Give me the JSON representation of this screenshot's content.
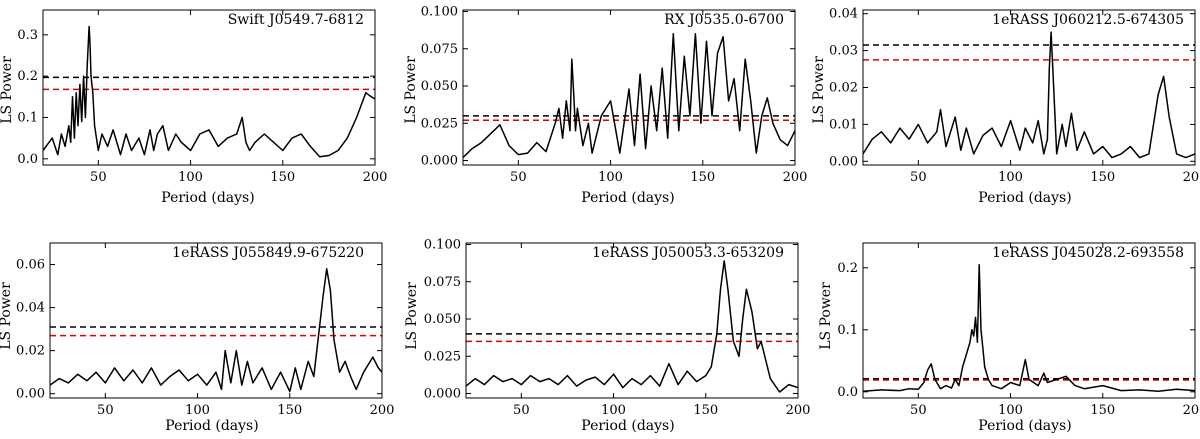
{
  "figure": {
    "xlabel": "Period (days)",
    "ylabel": "LS Power",
    "colors": {
      "power": "#000000",
      "threshold_black": "#000000",
      "threshold_red": "#e00000"
    }
  },
  "chart_data": [
    {
      "type": "line",
      "title": "Swift J0549.7-6812",
      "xlabel": "Period (days)",
      "ylabel": "LS Power",
      "xlim": [
        20,
        200
      ],
      "ylim": [
        -0.015,
        0.36
      ],
      "xticks": [
        50,
        100,
        150,
        200
      ],
      "xtick_labels": [
        "50",
        "100",
        "150",
        "200"
      ],
      "yticks": [
        0.0,
        0.1,
        0.2,
        0.3
      ],
      "ytick_labels": [
        "0.0",
        "0.1",
        "0.2",
        "0.3"
      ],
      "thresholds": [
        {
          "color": "black",
          "value": 0.197
        },
        {
          "color": "red",
          "value": 0.168
        }
      ],
      "x": [
        20,
        25,
        28,
        30,
        32,
        34,
        35,
        36,
        37,
        38,
        39,
        40,
        41,
        42,
        43,
        44,
        45,
        45.5,
        46,
        47,
        48,
        50,
        52,
        55,
        58,
        62,
        65,
        68,
        72,
        75,
        78,
        80,
        82,
        85,
        88,
        92,
        95,
        100,
        105,
        110,
        115,
        120,
        125,
        128,
        130,
        132,
        135,
        140,
        145,
        150,
        155,
        160,
        165,
        170,
        175,
        180,
        185,
        190,
        195,
        198,
        200
      ],
      "y": [
        0.02,
        0.05,
        0.01,
        0.06,
        0.03,
        0.08,
        0.04,
        0.15,
        0.05,
        0.16,
        0.08,
        0.18,
        0.09,
        0.2,
        0.1,
        0.23,
        0.32,
        0.28,
        0.2,
        0.16,
        0.08,
        0.02,
        0.06,
        0.03,
        0.07,
        0.01,
        0.06,
        0.02,
        0.05,
        0.01,
        0.07,
        0.02,
        0.06,
        0.08,
        0.02,
        0.06,
        0.04,
        0.02,
        0.06,
        0.07,
        0.03,
        0.05,
        0.06,
        0.1,
        0.04,
        0.02,
        0.04,
        0.06,
        0.04,
        0.02,
        0.05,
        0.06,
        0.03,
        0.005,
        0.008,
        0.02,
        0.05,
        0.1,
        0.16,
        0.15,
        0.145
      ]
    },
    {
      "type": "line",
      "title": "RX J0535.0-6700",
      "xlabel": "Period (days)",
      "ylabel": "LS Power",
      "xlim": [
        20,
        200
      ],
      "ylim": [
        -0.003,
        0.101
      ],
      "xticks": [
        50,
        100,
        150,
        200
      ],
      "xtick_labels": [
        "50",
        "100",
        "150",
        "200"
      ],
      "yticks": [
        0.0,
        0.025,
        0.05,
        0.075,
        0.1
      ],
      "ytick_labels": [
        "0.000",
        "0.025",
        "0.050",
        "0.075",
        "0.100"
      ],
      "thresholds": [
        {
          "color": "black",
          "value": 0.03
        },
        {
          "color": "red",
          "value": 0.027
        }
      ],
      "x": [
        20,
        25,
        30,
        35,
        40,
        45,
        50,
        55,
        60,
        65,
        70,
        72,
        74,
        76,
        78,
        79,
        80,
        81,
        82,
        85,
        88,
        90,
        95,
        100,
        105,
        110,
        113,
        116,
        119,
        122,
        125,
        128,
        131,
        134,
        137,
        140,
        143,
        146,
        149,
        152,
        155,
        158,
        161,
        164,
        167,
        170,
        173,
        176,
        179,
        182,
        185,
        188,
        192,
        196,
        200
      ],
      "y": [
        0.002,
        0.008,
        0.012,
        0.018,
        0.024,
        0.01,
        0.004,
        0.005,
        0.012,
        0.006,
        0.025,
        0.035,
        0.015,
        0.04,
        0.02,
        0.068,
        0.045,
        0.02,
        0.035,
        0.01,
        0.025,
        0.005,
        0.03,
        0.04,
        0.005,
        0.048,
        0.01,
        0.058,
        0.008,
        0.05,
        0.02,
        0.062,
        0.015,
        0.085,
        0.02,
        0.07,
        0.03,
        0.085,
        0.025,
        0.08,
        0.03,
        0.072,
        0.083,
        0.04,
        0.055,
        0.02,
        0.068,
        0.04,
        0.005,
        0.03,
        0.042,
        0.025,
        0.014,
        0.01,
        0.02
      ]
    },
    {
      "type": "line",
      "title": "1eRASS J060212.5-674305",
      "xlabel": "Period (days)",
      "ylabel": "LS Power",
      "xlim": [
        20,
        200
      ],
      "ylim": [
        -0.001,
        0.041
      ],
      "xticks": [
        50,
        100,
        150,
        200
      ],
      "xtick_labels": [
        "50",
        "100",
        "150",
        "200"
      ],
      "yticks": [
        0.0,
        0.01,
        0.02,
        0.03,
        0.04
      ],
      "ytick_labels": [
        "0.00",
        "0.01",
        "0.02",
        "0.03",
        "0.04"
      ],
      "thresholds": [
        {
          "color": "black",
          "value": 0.0315
        },
        {
          "color": "red",
          "value": 0.0275
        }
      ],
      "x": [
        20,
        25,
        30,
        35,
        40,
        45,
        50,
        55,
        60,
        62,
        65,
        70,
        73,
        76,
        80,
        85,
        90,
        95,
        100,
        105,
        108,
        112,
        115,
        118,
        120,
        121,
        122,
        123,
        125,
        128,
        130,
        133,
        136,
        140,
        145,
        150,
        155,
        160,
        165,
        170,
        175,
        180,
        183,
        186,
        190,
        195,
        200
      ],
      "y": [
        0.002,
        0.006,
        0.008,
        0.005,
        0.009,
        0.006,
        0.01,
        0.005,
        0.008,
        0.014,
        0.004,
        0.012,
        0.003,
        0.009,
        0.002,
        0.007,
        0.009,
        0.004,
        0.011,
        0.003,
        0.009,
        0.005,
        0.011,
        0.002,
        0.006,
        0.025,
        0.035,
        0.024,
        0.002,
        0.01,
        0.004,
        0.013,
        0.003,
        0.008,
        0.002,
        0.004,
        0.001,
        0.002,
        0.004,
        0.001,
        0.002,
        0.018,
        0.023,
        0.012,
        0.002,
        0.001,
        0.002
      ]
    },
    {
      "type": "line",
      "title": "1eRASS J055849.9-675220",
      "xlabel": "Period (days)",
      "ylabel": "LS Power",
      "xlim": [
        20,
        200
      ],
      "ylim": [
        -0.002,
        0.07
      ],
      "xticks": [
        50,
        100,
        150,
        200
      ],
      "xtick_labels": [
        "50",
        "100",
        "150",
        "200"
      ],
      "yticks": [
        0.0,
        0.02,
        0.04,
        0.06
      ],
      "ytick_labels": [
        "0.00",
        "0.02",
        "0.04",
        "0.06"
      ],
      "thresholds": [
        {
          "color": "black",
          "value": 0.031
        },
        {
          "color": "red",
          "value": 0.027
        }
      ],
      "x": [
        20,
        25,
        30,
        35,
        40,
        45,
        50,
        55,
        60,
        65,
        70,
        75,
        80,
        85,
        90,
        95,
        100,
        105,
        110,
        113,
        115,
        118,
        121,
        124,
        127,
        130,
        135,
        140,
        145,
        150,
        153,
        156,
        160,
        163,
        166,
        168,
        170,
        172,
        174,
        177,
        180,
        183,
        186,
        190,
        195,
        198,
        200
      ],
      "y": [
        0.004,
        0.007,
        0.005,
        0.009,
        0.006,
        0.01,
        0.005,
        0.012,
        0.006,
        0.011,
        0.005,
        0.012,
        0.004,
        0.008,
        0.011,
        0.006,
        0.009,
        0.004,
        0.01,
        0.002,
        0.02,
        0.005,
        0.02,
        0.004,
        0.015,
        0.005,
        0.012,
        0.002,
        0.01,
        0.001,
        0.012,
        0.002,
        0.015,
        0.008,
        0.03,
        0.045,
        0.058,
        0.048,
        0.025,
        0.01,
        0.015,
        0.008,
        0.002,
        0.01,
        0.017,
        0.012,
        0.01
      ]
    },
    {
      "type": "line",
      "title": "1eRASS J050053.3-653209",
      "xlabel": "Period (days)",
      "ylabel": "LS Power",
      "xlim": [
        20,
        200
      ],
      "ylim": [
        -0.003,
        0.101
      ],
      "xticks": [
        50,
        100,
        150,
        200
      ],
      "xtick_labels": [
        "50",
        "100",
        "150",
        "200"
      ],
      "yticks": [
        0.0,
        0.025,
        0.05,
        0.075,
        0.1
      ],
      "ytick_labels": [
        "0.000",
        "0.025",
        "0.050",
        "0.075",
        "0.100"
      ],
      "thresholds": [
        {
          "color": "black",
          "value": 0.04
        },
        {
          "color": "red",
          "value": 0.035
        }
      ],
      "x": [
        20,
        25,
        30,
        35,
        40,
        45,
        50,
        55,
        60,
        65,
        70,
        75,
        80,
        85,
        90,
        95,
        100,
        105,
        110,
        115,
        120,
        125,
        130,
        135,
        140,
        145,
        150,
        153,
        156,
        158,
        160,
        162,
        165,
        168,
        170,
        172,
        175,
        178,
        180,
        182,
        185,
        190,
        195,
        200
      ],
      "y": [
        0.005,
        0.01,
        0.006,
        0.012,
        0.008,
        0.01,
        0.006,
        0.012,
        0.008,
        0.01,
        0.006,
        0.012,
        0.005,
        0.009,
        0.011,
        0.006,
        0.013,
        0.004,
        0.01,
        0.006,
        0.012,
        0.005,
        0.02,
        0.006,
        0.015,
        0.008,
        0.012,
        0.018,
        0.04,
        0.07,
        0.089,
        0.07,
        0.035,
        0.025,
        0.05,
        0.07,
        0.055,
        0.03,
        0.035,
        0.025,
        0.01,
        0.001,
        0.006,
        0.004
      ]
    },
    {
      "type": "line",
      "title": "1eRASS J045028.2-693558",
      "xlabel": "Period (days)",
      "ylabel": "LS Power",
      "xlim": [
        20,
        200
      ],
      "ylim": [
        -0.01,
        0.24
      ],
      "xticks": [
        50,
        100,
        150,
        200
      ],
      "xtick_labels": [
        "50",
        "100",
        "150",
        "200"
      ],
      "yticks": [
        0.0,
        0.1,
        0.2
      ],
      "ytick_labels": [
        "0.0",
        "0.1",
        "0.2"
      ],
      "thresholds": [
        {
          "color": "black",
          "value": 0.021
        },
        {
          "color": "red",
          "value": 0.019
        }
      ],
      "x": [
        20,
        30,
        40,
        45,
        50,
        53,
        55,
        57,
        59,
        62,
        65,
        68,
        70,
        72,
        74,
        76,
        78,
        79,
        80,
        81,
        82,
        83,
        84,
        85,
        86,
        88,
        90,
        95,
        100,
        105,
        108,
        110,
        115,
        118,
        120,
        125,
        130,
        135,
        140,
        150,
        160,
        170,
        180,
        190,
        200
      ],
      "y": [
        0.001,
        0.003,
        0.002,
        0.005,
        0.004,
        0.015,
        0.035,
        0.045,
        0.02,
        0.005,
        0.01,
        0.006,
        0.02,
        0.01,
        0.04,
        0.06,
        0.08,
        0.1,
        0.09,
        0.12,
        0.08,
        0.205,
        0.1,
        0.07,
        0.04,
        0.02,
        0.01,
        0.005,
        0.015,
        0.01,
        0.052,
        0.02,
        0.01,
        0.03,
        0.015,
        0.02,
        0.025,
        0.01,
        0.005,
        0.01,
        0.002,
        0.003,
        0.001,
        0.004,
        0.002
      ]
    }
  ]
}
